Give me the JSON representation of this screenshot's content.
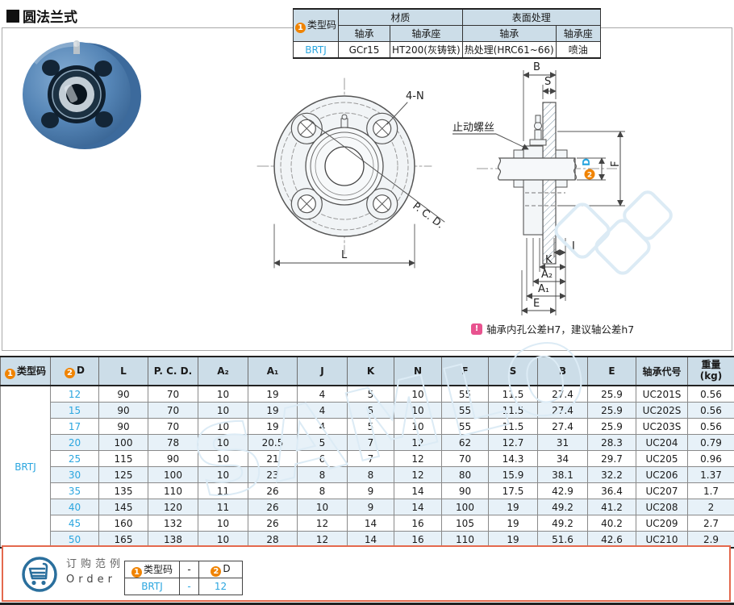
{
  "page": {
    "title": "圆法兰式",
    "watermark": "SAMLO"
  },
  "spec_table": {
    "circle1": "1",
    "type_label": "类型码",
    "material": "材质",
    "surface": "表面处理",
    "bearing_col": "轴承",
    "housing_col": "轴承座",
    "bearing_col2": "轴承",
    "housing_col2": "轴承座",
    "code": "BRTJ",
    "bearing_material": "GCr15",
    "housing_material": "HT200(灰铸铁)",
    "bearing_surface": "热处理(HRC61~66)",
    "housing_surface": "喷油"
  },
  "drawing": {
    "front": {
      "bolt_label": "4-N",
      "pcd_label": "P. C. D.",
      "l_label": "L"
    },
    "side": {
      "b": "B",
      "s": "S",
      "set_screw": "止动螺丝",
      "d_num": "2",
      "d_letter": "D",
      "f": "F",
      "j": "J",
      "k": "K",
      "a2": "A₂",
      "a1": "A₁",
      "e": "E"
    },
    "note": "轴承内孔公差H7，建议轴公差h7"
  },
  "dim_table": {
    "header": {
      "circle1": "1",
      "type_label": "类型码",
      "circle2": "2",
      "d_label": "D",
      "cols": [
        "L",
        "P. C. D.",
        "A₂",
        "A₁",
        "J",
        "K",
        "N",
        "F",
        "S",
        "B",
        "E",
        "轴承代号"
      ],
      "weight1": "重量",
      "weight2": "(kg)"
    },
    "code": "BRTJ",
    "rows": [
      [
        "12",
        "90",
        "70",
        "10",
        "19",
        "4",
        "5",
        "10",
        "55",
        "11.5",
        "27.4",
        "25.9",
        "UC201S",
        "0.56"
      ],
      [
        "15",
        "90",
        "70",
        "10",
        "19",
        "4",
        "5",
        "10",
        "55",
        "11.5",
        "27.4",
        "25.9",
        "UC202S",
        "0.56"
      ],
      [
        "17",
        "90",
        "70",
        "10",
        "19",
        "4",
        "5",
        "10",
        "55",
        "11.5",
        "27.4",
        "25.9",
        "UC203S",
        "0.56"
      ],
      [
        "20",
        "100",
        "78",
        "10",
        "20.5",
        "5",
        "7",
        "12",
        "62",
        "12.7",
        "31",
        "28.3",
        "UC204",
        "0.79"
      ],
      [
        "25",
        "115",
        "90",
        "10",
        "21",
        "6",
        "7",
        "12",
        "70",
        "14.3",
        "34",
        "29.7",
        "UC205",
        "0.96"
      ],
      [
        "30",
        "125",
        "100",
        "10",
        "23",
        "8",
        "8",
        "12",
        "80",
        "15.9",
        "38.1",
        "32.2",
        "UC206",
        "1.37"
      ],
      [
        "35",
        "135",
        "110",
        "11",
        "26",
        "8",
        "9",
        "14",
        "90",
        "17.5",
        "42.9",
        "36.4",
        "UC207",
        "1.7"
      ],
      [
        "40",
        "145",
        "120",
        "11",
        "26",
        "10",
        "9",
        "14",
        "100",
        "19",
        "49.2",
        "41.2",
        "UC208",
        "2"
      ],
      [
        "45",
        "160",
        "132",
        "10",
        "26",
        "12",
        "14",
        "16",
        "105",
        "19",
        "49.2",
        "40.2",
        "UC209",
        "2.7"
      ],
      [
        "50",
        "165",
        "138",
        "10",
        "28",
        "12",
        "14",
        "16",
        "110",
        "19",
        "51.6",
        "42.6",
        "UC210",
        "2.9"
      ]
    ]
  },
  "order": {
    "title_cn": "订购范例",
    "title_en": "Order",
    "circle1": "1",
    "type_label": "类型码",
    "dash": "-",
    "circle2": "2",
    "d_label": "D",
    "code": "BRTJ",
    "dash_value": "-",
    "d_value": "12"
  },
  "colors": {
    "accent_orange": "#f08300",
    "link_blue": "#2ba6df",
    "header_bg": "#ccdde8",
    "row_alt": "#e7f1f8",
    "note_pink": "#e8538f",
    "footer_border": "#e4694e",
    "cart_blue": "#2a6f9d"
  }
}
